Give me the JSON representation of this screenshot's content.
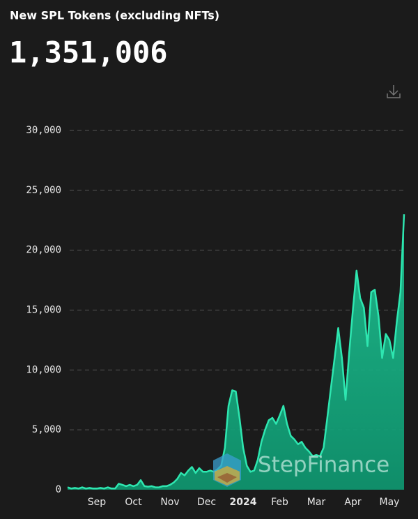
{
  "title": "New SPL Tokens (excluding NFTs)",
  "headline": "1,351,006",
  "chart_data": {
    "type": "area",
    "watermark": "StepFinance",
    "categories": [
      null,
      null,
      null,
      null,
      null,
      null,
      null,
      null,
      "Sep",
      null,
      null,
      null,
      null,
      null,
      null,
      null,
      null,
      null,
      "Oct",
      null,
      null,
      null,
      null,
      null,
      null,
      null,
      null,
      null,
      "Nov",
      null,
      null,
      null,
      null,
      null,
      null,
      null,
      null,
      null,
      "Dec",
      null,
      null,
      null,
      null,
      null,
      null,
      null,
      null,
      null,
      "2024",
      null,
      null,
      null,
      null,
      null,
      null,
      null,
      null,
      null,
      "Feb",
      null,
      null,
      null,
      null,
      null,
      null,
      null,
      null,
      null,
      "Mar",
      null,
      null,
      null,
      null,
      null,
      null,
      null,
      null,
      null,
      "Apr",
      null,
      null,
      null,
      null,
      null,
      null,
      null,
      null,
      null,
      "May",
      null,
      null,
      null,
      null
    ],
    "series": [
      {
        "color": "#2ee6b0",
        "values": [
          200,
          100,
          150,
          100,
          200,
          100,
          150,
          100,
          100,
          150,
          100,
          200,
          100,
          100,
          500,
          400,
          300,
          400,
          300,
          400,
          800,
          300,
          250,
          300,
          200,
          200,
          300,
          300,
          400,
          600,
          900,
          1400,
          1200,
          1600,
          1900,
          1400,
          1800,
          1500,
          1500,
          1600,
          1500,
          1700,
          2000,
          3500,
          7000,
          8300,
          8200,
          6000,
          3500,
          2000,
          1500,
          1600,
          2500,
          4000,
          5000,
          5800,
          6000,
          5500,
          6200,
          7000,
          5500,
          4500,
          4200,
          3800,
          4000,
          3500,
          3200,
          2800,
          2900,
          2800,
          3500,
          6000,
          8500,
          11000,
          13500,
          11000,
          7500,
          11500,
          15000,
          18300,
          16000,
          15200,
          12000,
          16500,
          16700,
          14500,
          11000,
          13000,
          12500,
          11000,
          14000,
          16500,
          23000
        ]
      }
    ],
    "ylim": [
      0,
      30000
    ],
    "yticks": [
      0,
      {
        "value": 5000,
        "label": "5,000"
      },
      {
        "value": 10000,
        "label": "10,000"
      },
      {
        "value": 15000,
        "label": "15,000"
      },
      {
        "value": 20000,
        "label": "20,000"
      },
      {
        "value": 25000,
        "label": "25,000"
      },
      {
        "value": 30000,
        "label": "30,000"
      }
    ],
    "grid": true
  }
}
